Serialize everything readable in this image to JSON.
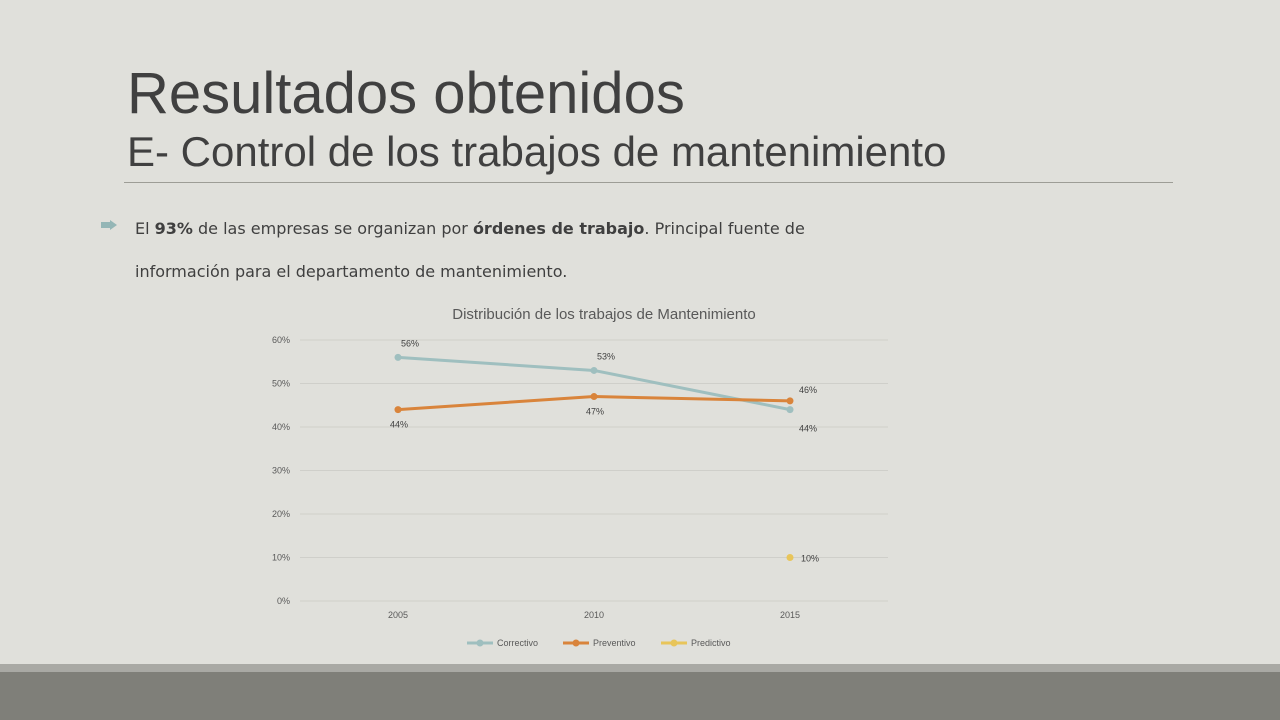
{
  "slide": {
    "title": "Resultados obtenidos",
    "subtitle": "E- Control de los trabajos de mantenimiento",
    "bullet": {
      "t1": "El ",
      "b1": "93%",
      "t2": " de las empresas se organizan por ",
      "b2": "órdenes de trabajo",
      "t3": ".  Principal fuente de información para el departamento de mantenimiento."
    }
  },
  "colors": {
    "accent": "#94b6b6",
    "title": "#404040",
    "background": "#e0e0db",
    "footer": "#7f7f79"
  },
  "chart_data": {
    "type": "line",
    "title": "Distribución de los trabajos de Mantenimiento",
    "categories": [
      "2005",
      "2010",
      "2015"
    ],
    "series": [
      {
        "name": "Correctivo",
        "color": "#9fbfbf",
        "values": [
          0.56,
          0.53,
          0.44
        ],
        "labels": [
          "56%",
          "53%",
          "44%"
        ]
      },
      {
        "name": "Preventivo",
        "color": "#d9843b",
        "values": [
          0.44,
          0.47,
          0.46
        ],
        "labels": [
          "44%",
          "47%",
          "46%"
        ]
      },
      {
        "name": "Predictivo",
        "color": "#e8c55a",
        "values": [
          null,
          null,
          0.1
        ],
        "labels": [
          null,
          null,
          "10%"
        ]
      }
    ],
    "yticks": [
      "0%",
      "10%",
      "20%",
      "30%",
      "40%",
      "50%",
      "60%"
    ],
    "ylim": [
      0,
      0.6
    ],
    "grid": true,
    "legend": "bottom"
  }
}
